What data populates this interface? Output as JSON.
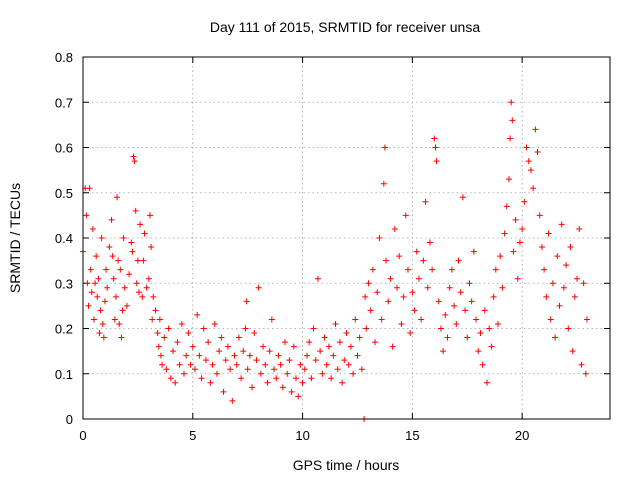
{
  "chart_data": {
    "type": "scatter",
    "title": "Day 111 of 2015, SRMTID for receiver unsa",
    "xlabel": "GPS time / hours",
    "ylabel": "SRMTID / TECUs",
    "xlim": [
      0,
      24
    ],
    "ylim": [
      0,
      0.8
    ],
    "xticks": [
      0,
      5,
      10,
      15,
      20
    ],
    "xtick_labels": [
      "0",
      "5",
      "10",
      "15",
      "20"
    ],
    "yticks": [
      0,
      0.1,
      0.2,
      0.3,
      0.4,
      0.5,
      0.6,
      0.7,
      0.8
    ],
    "ytick_labels": [
      "0",
      "0.1",
      "0.2",
      "0.3",
      "0.4",
      "0.5",
      "0.6",
      "0.7",
      "0.8"
    ],
    "grid": true,
    "marker": "+",
    "marker_color": "#ff0000",
    "series": [
      {
        "name": "SRMTID",
        "points": [
          [
            0.0,
            0.37
          ],
          [
            0.1,
            0.51
          ],
          [
            0.15,
            0.45
          ],
          [
            0.2,
            0.3
          ],
          [
            0.25,
            0.25
          ],
          [
            0.3,
            0.51
          ],
          [
            0.35,
            0.33
          ],
          [
            0.4,
            0.28
          ],
          [
            0.45,
            0.42
          ],
          [
            0.5,
            0.22
          ],
          [
            0.55,
            0.3
          ],
          [
            0.6,
            0.36
          ],
          [
            0.65,
            0.27
          ],
          [
            0.7,
            0.31
          ],
          [
            0.75,
            0.19
          ],
          [
            0.8,
            0.24
          ],
          [
            0.85,
            0.4
          ],
          [
            0.9,
            0.21
          ],
          [
            0.95,
            0.18
          ],
          [
            1.0,
            0.26
          ],
          [
            1.05,
            0.33
          ],
          [
            1.1,
            0.29
          ],
          [
            1.2,
            0.38
          ],
          [
            1.3,
            0.44
          ],
          [
            1.35,
            0.36
          ],
          [
            1.4,
            0.31
          ],
          [
            1.45,
            0.22
          ],
          [
            1.5,
            0.27
          ],
          [
            1.55,
            0.49
          ],
          [
            1.6,
            0.35
          ],
          [
            1.65,
            0.21
          ],
          [
            1.7,
            0.33
          ],
          [
            1.75,
            0.18
          ],
          [
            1.8,
            0.24
          ],
          [
            1.85,
            0.4
          ],
          [
            1.9,
            0.29
          ],
          [
            2.0,
            0.25
          ],
          [
            2.1,
            0.32
          ],
          [
            2.2,
            0.39
          ],
          [
            2.25,
            0.37
          ],
          [
            2.3,
            0.58
          ],
          [
            2.35,
            0.57
          ],
          [
            2.4,
            0.46
          ],
          [
            2.45,
            0.3
          ],
          [
            2.5,
            0.35
          ],
          [
            2.55,
            0.28
          ],
          [
            2.6,
            0.43
          ],
          [
            2.7,
            0.27
          ],
          [
            2.75,
            0.35
          ],
          [
            2.8,
            0.41
          ],
          [
            2.9,
            0.29
          ],
          [
            3.0,
            0.31
          ],
          [
            3.05,
            0.45
          ],
          [
            3.1,
            0.38
          ],
          [
            3.15,
            0.22
          ],
          [
            3.2,
            0.27
          ],
          [
            3.3,
            0.24
          ],
          [
            3.4,
            0.19
          ],
          [
            3.45,
            0.16
          ],
          [
            3.5,
            0.22
          ],
          [
            3.55,
            0.14
          ],
          [
            3.6,
            0.12
          ],
          [
            3.7,
            0.18
          ],
          [
            3.8,
            0.11
          ],
          [
            3.9,
            0.2
          ],
          [
            4.0,
            0.09
          ],
          [
            4.1,
            0.15
          ],
          [
            4.2,
            0.08
          ],
          [
            4.3,
            0.17
          ],
          [
            4.4,
            0.12
          ],
          [
            4.5,
            0.21
          ],
          [
            4.6,
            0.1
          ],
          [
            4.7,
            0.14
          ],
          [
            4.8,
            0.19
          ],
          [
            4.9,
            0.12
          ],
          [
            5.0,
            0.16
          ],
          [
            5.1,
            0.11
          ],
          [
            5.2,
            0.23
          ],
          [
            5.3,
            0.14
          ],
          [
            5.4,
            0.09
          ],
          [
            5.5,
            0.2
          ],
          [
            5.6,
            0.13
          ],
          [
            5.7,
            0.17
          ],
          [
            5.8,
            0.08
          ],
          [
            5.9,
            0.12
          ],
          [
            6.0,
            0.21
          ],
          [
            6.1,
            0.1
          ],
          [
            6.2,
            0.15
          ],
          [
            6.3,
            0.18
          ],
          [
            6.4,
            0.06
          ],
          [
            6.5,
            0.13
          ],
          [
            6.6,
            0.16
          ],
          [
            6.7,
            0.11
          ],
          [
            6.8,
            0.04
          ],
          [
            6.9,
            0.14
          ],
          [
            7.0,
            0.12
          ],
          [
            7.1,
            0.18
          ],
          [
            7.2,
            0.09
          ],
          [
            7.3,
            0.15
          ],
          [
            7.4,
            0.2
          ],
          [
            7.45,
            0.26
          ],
          [
            7.5,
            0.11
          ],
          [
            7.6,
            0.14
          ],
          [
            7.7,
            0.07
          ],
          [
            7.8,
            0.19
          ],
          [
            7.9,
            0.13
          ],
          [
            8.0,
            0.29
          ],
          [
            8.1,
            0.1
          ],
          [
            8.2,
            0.16
          ],
          [
            8.3,
            0.12
          ],
          [
            8.4,
            0.08
          ],
          [
            8.5,
            0.15
          ],
          [
            8.6,
            0.22
          ],
          [
            8.7,
            0.11
          ],
          [
            8.8,
            0.09
          ],
          [
            8.9,
            0.14
          ],
          [
            9.0,
            0.12
          ],
          [
            9.1,
            0.07
          ],
          [
            9.2,
            0.17
          ],
          [
            9.3,
            0.1
          ],
          [
            9.4,
            0.13
          ],
          [
            9.5,
            0.06
          ],
          [
            9.6,
            0.16
          ],
          [
            9.7,
            0.09
          ],
          [
            9.8,
            0.05
          ],
          [
            9.9,
            0.12
          ],
          [
            10.0,
            0.08
          ],
          [
            10.1,
            0.11
          ],
          [
            10.2,
            0.14
          ],
          [
            10.3,
            0.17
          ],
          [
            10.4,
            0.09
          ],
          [
            10.5,
            0.2
          ],
          [
            10.6,
            0.13
          ],
          [
            10.7,
            0.31
          ],
          [
            10.8,
            0.15
          ],
          [
            10.9,
            0.1
          ],
          [
            11.0,
            0.18
          ],
          [
            11.1,
            0.12
          ],
          [
            11.2,
            0.16
          ],
          [
            11.3,
            0.09
          ],
          [
            11.4,
            0.14
          ],
          [
            11.5,
            0.21
          ],
          [
            11.6,
            0.11
          ],
          [
            11.7,
            0.17
          ],
          [
            11.8,
            0.08
          ],
          [
            11.9,
            0.13
          ],
          [
            12.0,
            0.19
          ],
          [
            12.1,
            0.12
          ],
          [
            12.2,
            0.16
          ],
          [
            12.3,
            0.1
          ],
          [
            12.4,
            0.22
          ],
          [
            12.5,
            0.14
          ],
          [
            12.6,
            0.18
          ],
          [
            12.7,
            0.11
          ],
          [
            12.8,
            0.0
          ],
          [
            12.85,
            0.27
          ],
          [
            12.9,
            0.2
          ],
          [
            13.0,
            0.3
          ],
          [
            13.1,
            0.24
          ],
          [
            13.2,
            0.33
          ],
          [
            13.3,
            0.17
          ],
          [
            13.4,
            0.28
          ],
          [
            13.5,
            0.4
          ],
          [
            13.6,
            0.22
          ],
          [
            13.7,
            0.52
          ],
          [
            13.75,
            0.6
          ],
          [
            13.8,
            0.35
          ],
          [
            13.9,
            0.26
          ],
          [
            14.0,
            0.31
          ],
          [
            14.1,
            0.16
          ],
          [
            14.2,
            0.42
          ],
          [
            14.3,
            0.29
          ],
          [
            14.4,
            0.36
          ],
          [
            14.5,
            0.21
          ],
          [
            14.6,
            0.27
          ],
          [
            14.7,
            0.45
          ],
          [
            14.8,
            0.33
          ],
          [
            14.9,
            0.19
          ],
          [
            15.0,
            0.28
          ],
          [
            15.1,
            0.24
          ],
          [
            15.2,
            0.37
          ],
          [
            15.3,
            0.31
          ],
          [
            15.4,
            0.22
          ],
          [
            15.5,
            0.35
          ],
          [
            15.6,
            0.48
          ],
          [
            15.7,
            0.29
          ],
          [
            15.8,
            0.39
          ],
          [
            15.9,
            0.33
          ],
          [
            16.0,
            0.62
          ],
          [
            16.05,
            0.6
          ],
          [
            16.1,
            0.57
          ],
          [
            16.2,
            0.26
          ],
          [
            16.3,
            0.2
          ],
          [
            16.4,
            0.15
          ],
          [
            16.5,
            0.23
          ],
          [
            16.6,
            0.18
          ],
          [
            16.7,
            0.29
          ],
          [
            16.8,
            0.33
          ],
          [
            16.9,
            0.25
          ],
          [
            17.0,
            0.21
          ],
          [
            17.1,
            0.35
          ],
          [
            17.2,
            0.28
          ],
          [
            17.3,
            0.49
          ],
          [
            17.4,
            0.24
          ],
          [
            17.5,
            0.18
          ],
          [
            17.6,
            0.3
          ],
          [
            17.7,
            0.26
          ],
          [
            17.8,
            0.37
          ],
          [
            17.9,
            0.22
          ],
          [
            18.0,
            0.15
          ],
          [
            18.1,
            0.19
          ],
          [
            18.2,
            0.12
          ],
          [
            18.3,
            0.24
          ],
          [
            18.4,
            0.08
          ],
          [
            18.5,
            0.2
          ],
          [
            18.6,
            0.16
          ],
          [
            18.7,
            0.27
          ],
          [
            18.8,
            0.33
          ],
          [
            18.9,
            0.21
          ],
          [
            19.0,
            0.36
          ],
          [
            19.1,
            0.29
          ],
          [
            19.2,
            0.41
          ],
          [
            19.3,
            0.47
          ],
          [
            19.4,
            0.53
          ],
          [
            19.45,
            0.62
          ],
          [
            19.5,
            0.7
          ],
          [
            19.55,
            0.66
          ],
          [
            19.6,
            0.37
          ],
          [
            19.7,
            0.44
          ],
          [
            19.8,
            0.31
          ],
          [
            19.9,
            0.39
          ],
          [
            20.0,
            0.42
          ],
          [
            20.1,
            0.48
          ],
          [
            20.2,
            0.6
          ],
          [
            20.3,
            0.57
          ],
          [
            20.4,
            0.55
          ],
          [
            20.5,
            0.51
          ],
          [
            20.6,
            0.64
          ],
          [
            20.7,
            0.59
          ],
          [
            20.8,
            0.45
          ],
          [
            20.9,
            0.38
          ],
          [
            21.0,
            0.33
          ],
          [
            21.1,
            0.27
          ],
          [
            21.2,
            0.41
          ],
          [
            21.3,
            0.22
          ],
          [
            21.4,
            0.3
          ],
          [
            21.5,
            0.18
          ],
          [
            21.6,
            0.36
          ],
          [
            21.7,
            0.25
          ],
          [
            21.8,
            0.43
          ],
          [
            21.9,
            0.29
          ],
          [
            22.0,
            0.34
          ],
          [
            22.1,
            0.2
          ],
          [
            22.2,
            0.38
          ],
          [
            22.3,
            0.15
          ],
          [
            22.4,
            0.27
          ],
          [
            22.5,
            0.31
          ],
          [
            22.6,
            0.42
          ],
          [
            22.7,
            0.12
          ],
          [
            22.8,
            0.3
          ],
          [
            22.9,
            0.1
          ],
          [
            22.95,
            0.22
          ]
        ]
      }
    ]
  }
}
